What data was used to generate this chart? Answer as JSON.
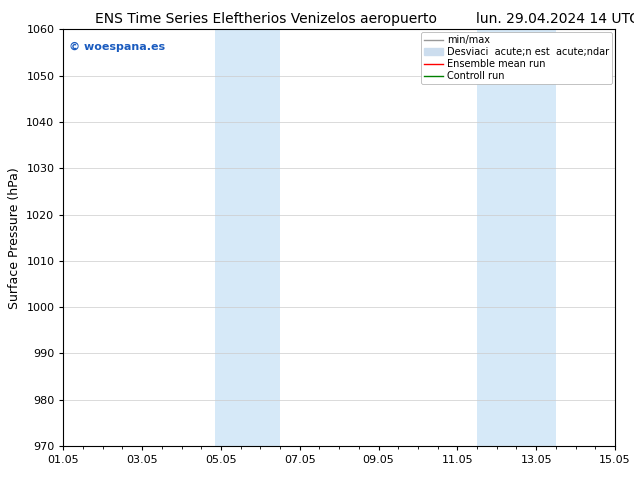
{
  "title_left": "ENS Time Series Eleftherios Venizelos aeropuerto",
  "title_right": "lun. 29.04.2024 14 UTC",
  "ylabel": "Surface Pressure (hPa)",
  "ylim": [
    970,
    1060
  ],
  "yticks": [
    970,
    980,
    990,
    1000,
    1010,
    1020,
    1030,
    1040,
    1050,
    1060
  ],
  "xtick_labels": [
    "01.05",
    "03.05",
    "05.05",
    "07.05",
    "09.05",
    "11.05",
    "13.05",
    "15.05"
  ],
  "xtick_positions": [
    0,
    2,
    4,
    6,
    8,
    10,
    12,
    14
  ],
  "x_total_days": 14,
  "shaded_bands": [
    {
      "x_start": 3.85,
      "x_end": 4.5
    },
    {
      "x_start": 4.5,
      "x_end": 5.5
    },
    {
      "x_start": 10.5,
      "x_end": 11.5
    },
    {
      "x_start": 11.5,
      "x_end": 12.5
    }
  ],
  "shaded_color": "#d6e9f8",
  "watermark_text": "© woespana.es",
  "watermark_color": "#1a5bbf",
  "legend_labels": [
    "min/max",
    "Desviaci  acute;n est  acute;ndar",
    "Ensemble mean run",
    "Controll run"
  ],
  "legend_colors": [
    "#999999",
    "#ccddee",
    "red",
    "green"
  ],
  "legend_lws": [
    1.0,
    8,
    1.0,
    1.0
  ],
  "bg_color": "#ffffff",
  "grid_color": "#cccccc",
  "tick_color": "#000000",
  "font_size_title": 10,
  "font_size_ticks": 8,
  "font_size_ylabel": 9,
  "font_size_legend": 7,
  "font_size_watermark": 8
}
